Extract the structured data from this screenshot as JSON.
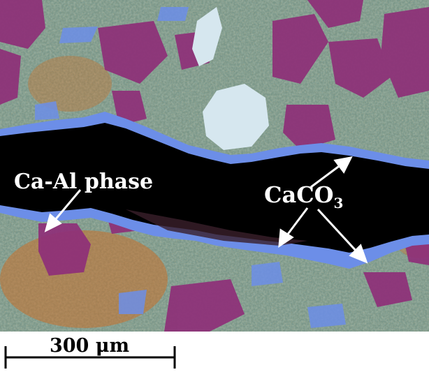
{
  "annotations": {
    "phase_label": "Ca-Al phase",
    "carbonate_label_main": "CaCO",
    "carbonate_label_sub": "3"
  },
  "scale_bar": {
    "label": "300 μm",
    "length_um": 300
  },
  "colors": {
    "crack": "#000000",
    "carbonate_rim": "#6c8ee8",
    "aggregate": "#8e2f78",
    "matrix_green": "#7ea84a",
    "matrix_orange": "#c9702a",
    "pale_grain": "#d6e7ef",
    "annotation": "#ffffff"
  }
}
